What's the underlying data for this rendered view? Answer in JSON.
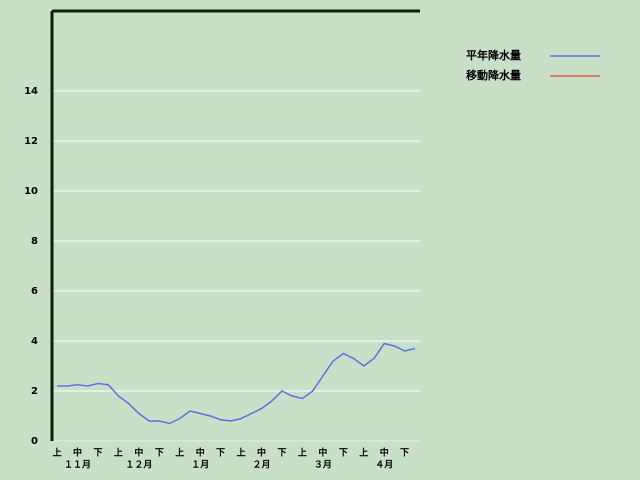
{
  "chart_data": {
    "type": "line",
    "categories": [
      "上",
      null,
      "中",
      null,
      "下",
      null,
      "上",
      null,
      "中",
      null,
      "下",
      null,
      "上",
      null,
      "中",
      null,
      "下",
      null,
      "上",
      null,
      "中",
      null,
      "下",
      null,
      "上",
      null,
      "中",
      null,
      "下",
      null,
      "上",
      null,
      "中",
      null,
      "下",
      null
    ],
    "months": [
      "１１月",
      "１２月",
      "１月",
      "２月",
      "３月",
      "４月"
    ],
    "series": [
      {
        "name": "平年降水量",
        "color": "#6070e0",
        "values": [
          2.2,
          2.2,
          2.25,
          2.2,
          2.3,
          2.25,
          1.8,
          1.5,
          1.1,
          0.8,
          0.8,
          0.7,
          0.9,
          1.2,
          1.1,
          1.0,
          0.85,
          0.8,
          0.9,
          1.1,
          1.3,
          1.6,
          2.0,
          1.8,
          1.7,
          2.0,
          2.6,
          3.2,
          3.5,
          3.3,
          3.0,
          3.3,
          3.9,
          3.8,
          3.6,
          3.7
        ]
      },
      {
        "name": "移動降水量",
        "color": "#e06050",
        "values": [
          null,
          null,
          null,
          null,
          null,
          null,
          null,
          null,
          null,
          null,
          null,
          null,
          null,
          null,
          null,
          null,
          null,
          null,
          null,
          null,
          null,
          null,
          null,
          null,
          null,
          null,
          null,
          null,
          null,
          null,
          null,
          null,
          null,
          null,
          null,
          null
        ]
      }
    ],
    "ylim": [
      0,
      17.2
    ],
    "yticks": [
      0,
      2,
      4,
      6,
      8,
      10,
      12,
      14
    ],
    "grid": true
  }
}
